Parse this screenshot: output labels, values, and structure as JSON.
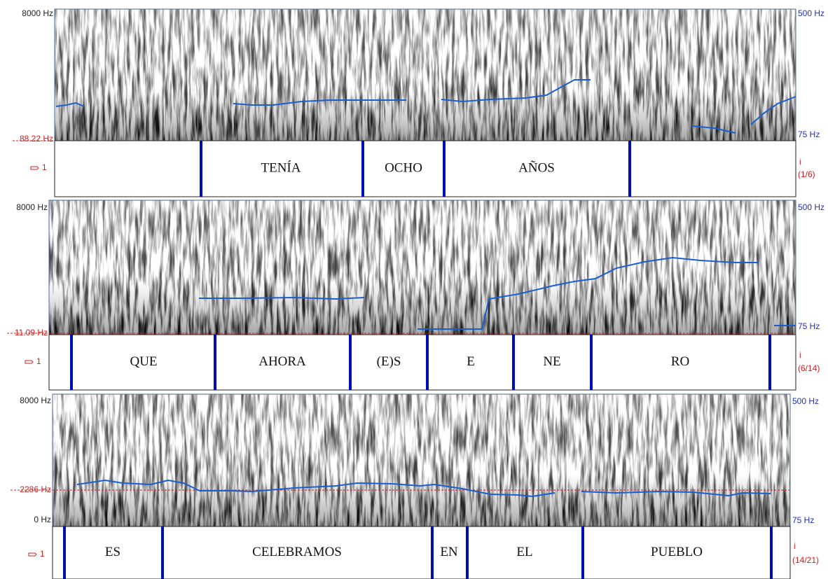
{
  "panels": [
    {
      "freq_top": "8000 Hz",
      "cursor_freq": "88.22 Hz",
      "pitch_top": "500 Hz",
      "pitch_bottom": "75 Hz",
      "tier": "1",
      "mark": "i",
      "interval": "(1/6)",
      "words": [
        "TENÍA",
        "OCHO",
        "AÑOS"
      ]
    },
    {
      "freq_top": "8000 Hz",
      "cursor_freq": "11.09 Hz",
      "pitch_top": "500 Hz",
      "pitch_bottom": "75 Hz",
      "tier": "1",
      "mark": "i",
      "interval": "(6/14)",
      "words": [
        "QUE",
        "AHORA",
        "(E)S",
        "E",
        "NE",
        "RO"
      ]
    },
    {
      "freq_top": "8000 Hz",
      "cursor_freq": "2286 Hz",
      "freq_bottom": "0 Hz",
      "pitch_top": "500 Hz",
      "pitch_bottom": "75 Hz",
      "tier": "1",
      "mark": "i",
      "interval": "(14/21)",
      "words": [
        "ES",
        "CELEBRAMOS",
        "EN",
        "EL",
        "PUEBLO"
      ]
    }
  ]
}
